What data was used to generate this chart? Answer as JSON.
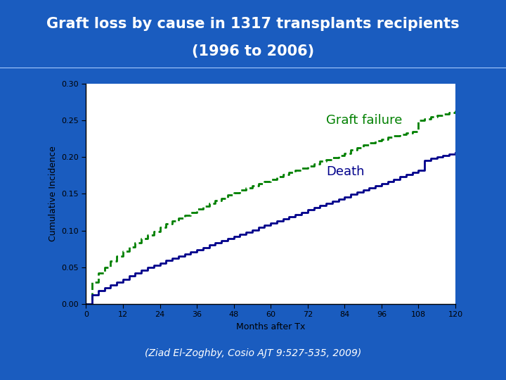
{
  "title_line1": "Graft loss by cause in 1317 transplants recipients",
  "title_line2": "(1996 to 2006)",
  "title_bg_color": "#1a3a8c",
  "slide_bg_color": "#1a5cbf",
  "plot_bg_color": "#ffffff",
  "xlabel": "Months after Tx",
  "ylabel": "Cumulative Incidence",
  "xlim": [
    0,
    120
  ],
  "ylim": [
    0.0,
    0.3
  ],
  "xticks": [
    0,
    12,
    24,
    36,
    48,
    60,
    72,
    84,
    96,
    108,
    120
  ],
  "yticks": [
    0.0,
    0.05,
    0.1,
    0.15,
    0.2,
    0.25,
    0.3
  ],
  "citation": "(Ziad El-Zoghby, Cosio AJT 9:527-535, 2009)",
  "graft_failure_color": "#008000",
  "death_color": "#00008b",
  "graft_failure_label": "Graft failure",
  "death_label": "Death",
  "graft_failure_x": [
    0,
    2,
    4,
    6,
    8,
    10,
    12,
    14,
    16,
    18,
    20,
    22,
    24,
    26,
    28,
    30,
    32,
    34,
    36,
    38,
    40,
    42,
    44,
    46,
    48,
    50,
    52,
    54,
    56,
    58,
    60,
    62,
    64,
    66,
    68,
    70,
    72,
    74,
    76,
    78,
    80,
    82,
    84,
    86,
    88,
    90,
    92,
    94,
    96,
    98,
    100,
    102,
    104,
    106,
    108,
    110,
    112,
    114,
    116,
    118,
    120
  ],
  "graft_failure_y": [
    0.0,
    0.03,
    0.042,
    0.05,
    0.058,
    0.065,
    0.072,
    0.078,
    0.083,
    0.089,
    0.094,
    0.099,
    0.104,
    0.109,
    0.113,
    0.117,
    0.121,
    0.125,
    0.129,
    0.133,
    0.137,
    0.141,
    0.144,
    0.148,
    0.151,
    0.155,
    0.158,
    0.161,
    0.164,
    0.167,
    0.17,
    0.173,
    0.176,
    0.179,
    0.182,
    0.185,
    0.188,
    0.191,
    0.194,
    0.196,
    0.199,
    0.202,
    0.205,
    0.21,
    0.213,
    0.216,
    0.219,
    0.222,
    0.224,
    0.227,
    0.229,
    0.231,
    0.233,
    0.235,
    0.25,
    0.252,
    0.255,
    0.257,
    0.259,
    0.261,
    0.263
  ],
  "death_x": [
    0,
    2,
    4,
    6,
    8,
    10,
    12,
    14,
    16,
    18,
    20,
    22,
    24,
    26,
    28,
    30,
    32,
    34,
    36,
    38,
    40,
    42,
    44,
    46,
    48,
    50,
    52,
    54,
    56,
    58,
    60,
    62,
    64,
    66,
    68,
    70,
    72,
    74,
    76,
    78,
    80,
    82,
    84,
    86,
    88,
    90,
    92,
    94,
    96,
    98,
    100,
    102,
    104,
    106,
    108,
    110,
    112,
    114,
    116,
    118,
    120
  ],
  "death_y": [
    0.0,
    0.012,
    0.018,
    0.022,
    0.026,
    0.03,
    0.034,
    0.038,
    0.042,
    0.046,
    0.05,
    0.053,
    0.056,
    0.059,
    0.062,
    0.065,
    0.068,
    0.071,
    0.074,
    0.077,
    0.08,
    0.083,
    0.086,
    0.089,
    0.092,
    0.095,
    0.098,
    0.101,
    0.104,
    0.107,
    0.11,
    0.113,
    0.116,
    0.119,
    0.122,
    0.125,
    0.128,
    0.131,
    0.134,
    0.137,
    0.14,
    0.143,
    0.146,
    0.149,
    0.152,
    0.155,
    0.158,
    0.161,
    0.164,
    0.167,
    0.17,
    0.173,
    0.176,
    0.179,
    0.182,
    0.195,
    0.198,
    0.2,
    0.202,
    0.204,
    0.206
  ]
}
